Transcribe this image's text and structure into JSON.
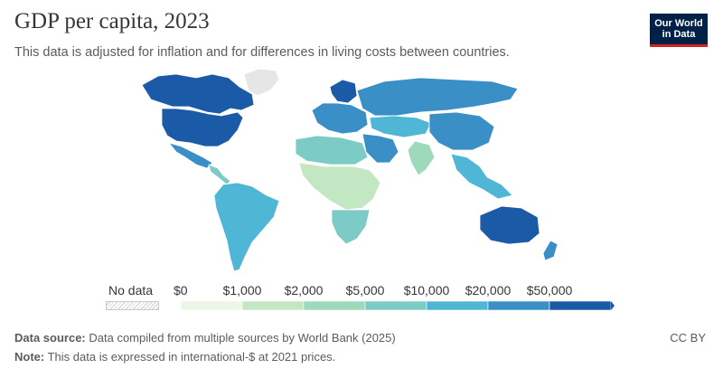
{
  "title": "GDP per capita, 2023",
  "subtitle": "This data is adjusted for inflation and for differences in living costs between countries.",
  "logo": {
    "line1": "Our World",
    "line2": "in Data"
  },
  "legend": {
    "no_data_label": "No data",
    "ticks": [
      "$0",
      "$1,000",
      "$2,000",
      "$5,000",
      "$10,000",
      "$20,000",
      "$50,000"
    ],
    "bins": [
      {
        "range": "$0 – $1,000",
        "color": "#ecf6e7"
      },
      {
        "range": "$1,000 – $2,000",
        "color": "#c3e6c3"
      },
      {
        "range": "$2,000 – $5,000",
        "color": "#9ed9bc"
      },
      {
        "range": "$5,000 – $10,000",
        "color": "#7dcbc6"
      },
      {
        "range": "$10,000 – $20,000",
        "color": "#50b6d6"
      },
      {
        "range": "$20,000 – $50,000",
        "color": "#3a8fc6"
      },
      {
        "range": "over $50,000",
        "color": "#1b5aa6"
      }
    ],
    "no_data_color": "#e6e6e6"
  },
  "footer": {
    "source_label": "Data source:",
    "source_text": "Data compiled from multiple sources by World Bank (2025)",
    "note_label": "Note:",
    "note_text": "This data is expressed in international-$ at 2021 prices.",
    "license": "CC BY"
  },
  "map_regions": [
    {
      "name": "Canada",
      "color": "#1b5aa6"
    },
    {
      "name": "Greenland",
      "color": "#e6e6e6"
    },
    {
      "name": "United States",
      "color": "#1b5aa6"
    },
    {
      "name": "Mexico",
      "color": "#3a8fc6"
    },
    {
      "name": "Central America",
      "color": "#7dcbc6"
    },
    {
      "name": "South America",
      "color": "#50b6d6"
    },
    {
      "name": "Northern Europe",
      "color": "#1b5aa6"
    },
    {
      "name": "Europe",
      "color": "#3a8fc6"
    },
    {
      "name": "Russia",
      "color": "#3a8fc6"
    },
    {
      "name": "Central Asia",
      "color": "#50b6d6"
    },
    {
      "name": "China",
      "color": "#3a8fc6"
    },
    {
      "name": "India",
      "color": "#9ed9bc"
    },
    {
      "name": "Middle East",
      "color": "#3a8fc6"
    },
    {
      "name": "North Africa",
      "color": "#7dcbc6"
    },
    {
      "name": "Sub-Saharan Africa",
      "color": "#c3e6c3"
    },
    {
      "name": "Southern Africa",
      "color": "#7dcbc6"
    },
    {
      "name": "Southeast Asia",
      "color": "#50b6d6"
    },
    {
      "name": "Australia",
      "color": "#1b5aa6"
    },
    {
      "name": "New Zealand",
      "color": "#3a8fc6"
    }
  ]
}
